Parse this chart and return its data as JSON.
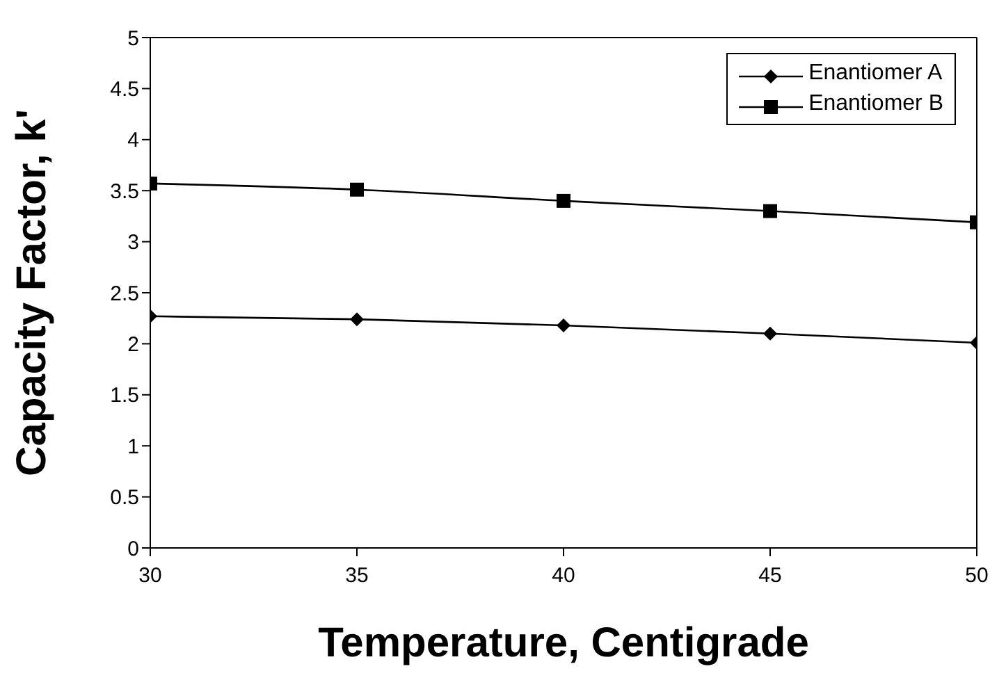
{
  "chart_data": {
    "type": "line",
    "xlabel": "Temperature, Centigrade",
    "ylabel": "Capacity Factor, k'",
    "x": [
      30,
      35,
      40,
      45,
      50
    ],
    "series": [
      {
        "name": "Enantiomer A",
        "color": "#000000",
        "marker": "diamond",
        "values": [
          2.27,
          2.24,
          2.18,
          2.1,
          2.01
        ]
      },
      {
        "name": "Enantiomer B",
        "color": "#000000",
        "marker": "square",
        "values": [
          3.57,
          3.51,
          3.4,
          3.3,
          3.19
        ]
      }
    ],
    "xlim": [
      30,
      50
    ],
    "xticks": [
      30,
      35,
      40,
      45,
      50
    ],
    "ylim": [
      0,
      5
    ],
    "yticks": [
      0,
      0.5,
      1,
      1.5,
      2,
      2.5,
      3,
      3.5,
      4,
      4.5,
      5
    ],
    "grid": false,
    "legend": "top right",
    "line_style": "solid"
  }
}
